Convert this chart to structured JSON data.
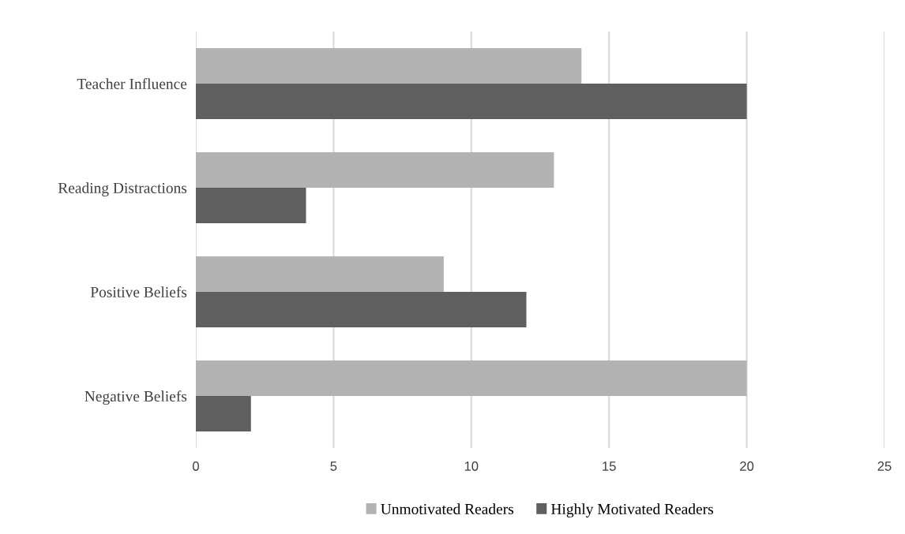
{
  "chart_data": {
    "type": "bar",
    "orientation": "horizontal",
    "categories": [
      "Teacher Influence",
      "Reading Distractions",
      "Positive Beliefs",
      "Negative Beliefs"
    ],
    "series": [
      {
        "name": "Unmotivated Readers",
        "color": "#b3b3b3",
        "values": [
          14,
          13,
          9,
          20
        ]
      },
      {
        "name": "Highly Motivated Readers",
        "color": "#5f5f5f",
        "values": [
          20,
          4,
          12,
          2
        ]
      }
    ],
    "xlim": [
      0,
      25
    ],
    "xticks": [
      0,
      5,
      10,
      15,
      20,
      25
    ],
    "grid": "x",
    "legend": "bottom"
  }
}
